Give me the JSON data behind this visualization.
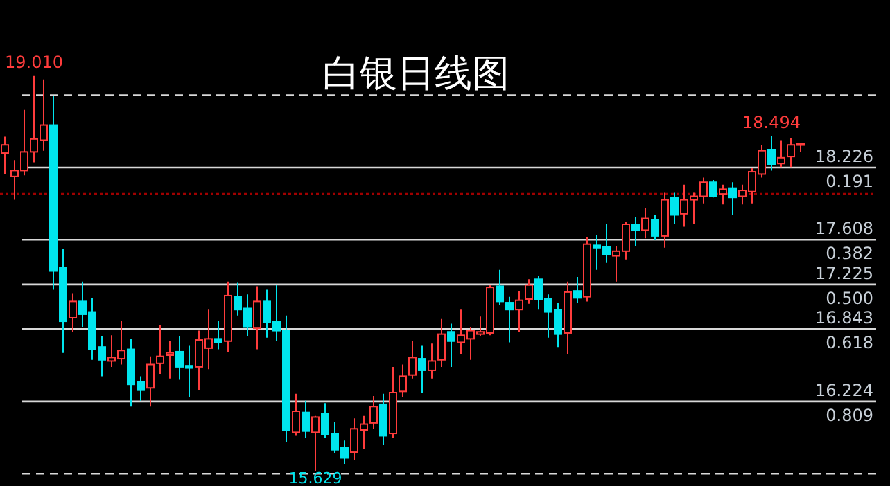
{
  "chart_data": {
    "type": "candlestick",
    "title": "白银日线图",
    "categories": [
      null,
      null,
      null,
      null,
      null,
      null,
      null,
      null,
      null,
      null,
      null,
      null,
      null,
      null,
      null,
      null,
      null,
      null,
      null,
      null,
      null,
      null,
      null,
      null,
      null,
      null,
      null,
      null,
      null,
      null,
      null,
      null,
      null,
      null,
      null,
      null,
      null,
      null,
      null,
      null,
      null,
      null,
      null,
      null,
      null,
      null,
      null,
      null,
      null,
      null,
      null,
      null,
      null,
      null,
      null,
      null,
      null,
      null,
      null,
      null,
      null,
      null,
      null,
      null,
      null,
      null,
      null,
      null,
      null,
      null,
      null,
      null,
      null,
      null,
      null,
      null,
      null,
      null,
      null,
      null,
      null,
      null,
      null
    ],
    "ohlc": [
      [
        18.35,
        18.49,
        18.17,
        18.42
      ],
      [
        18.15,
        18.29,
        17.95,
        18.2
      ],
      [
        18.2,
        18.72,
        18.16,
        18.36
      ],
      [
        18.36,
        19.01,
        18.27,
        18.47
      ],
      [
        18.46,
        18.98,
        18.37,
        18.59
      ],
      [
        18.59,
        18.84,
        17.18,
        17.34
      ],
      [
        17.37,
        17.53,
        16.64,
        16.91
      ],
      [
        16.94,
        17.15,
        16.82,
        17.08
      ],
      [
        17.08,
        17.25,
        16.86,
        16.97
      ],
      [
        16.99,
        17.11,
        16.58,
        16.67
      ],
      [
        16.69,
        16.78,
        16.44,
        16.58
      ],
      [
        16.57,
        16.79,
        16.52,
        16.6
      ],
      [
        16.59,
        16.91,
        16.54,
        16.66
      ],
      [
        16.67,
        16.76,
        16.18,
        16.37
      ],
      [
        16.39,
        16.44,
        16.23,
        16.32
      ],
      [
        16.34,
        16.61,
        16.18,
        16.54
      ],
      [
        16.55,
        16.88,
        16.46,
        16.61
      ],
      [
        16.62,
        16.74,
        16.42,
        16.64
      ],
      [
        16.65,
        16.78,
        16.41,
        16.52
      ],
      [
        16.53,
        16.7,
        16.26,
        16.51
      ],
      [
        16.52,
        16.83,
        16.32,
        16.75
      ],
      [
        16.68,
        17.01,
        16.5,
        16.76
      ],
      [
        16.76,
        16.91,
        16.67,
        16.73
      ],
      [
        16.74,
        17.25,
        16.65,
        17.13
      ],
      [
        17.12,
        17.24,
        16.96,
        17.01
      ],
      [
        17.02,
        17.14,
        16.78,
        16.86
      ],
      [
        16.85,
        17.21,
        16.67,
        17.08
      ],
      [
        17.08,
        17.18,
        16.77,
        16.9
      ],
      [
        16.91,
        17.22,
        16.74,
        16.83
      ],
      [
        16.83,
        16.96,
        15.88,
        15.98
      ],
      [
        15.96,
        16.29,
        15.93,
        16.14
      ],
      [
        16.13,
        16.23,
        15.91,
        15.97
      ],
      [
        15.96,
        16.1,
        15.629,
        16.09
      ],
      [
        16.12,
        16.21,
        15.91,
        15.94
      ],
      [
        15.95,
        16.05,
        15.78,
        15.81
      ],
      [
        15.83,
        15.89,
        15.69,
        15.74
      ],
      [
        15.79,
        16.08,
        15.72,
        15.99
      ],
      [
        15.98,
        16.1,
        15.82,
        16.03
      ],
      [
        16.04,
        16.27,
        15.99,
        16.18
      ],
      [
        16.2,
        16.29,
        15.85,
        15.93
      ],
      [
        15.95,
        16.52,
        15.91,
        16.3
      ],
      [
        16.31,
        16.54,
        16.26,
        16.44
      ],
      [
        16.45,
        16.74,
        16.42,
        16.6
      ],
      [
        16.59,
        16.7,
        16.3,
        16.49
      ],
      [
        16.49,
        16.72,
        16.42,
        16.57
      ],
      [
        16.58,
        16.93,
        16.52,
        16.8
      ],
      [
        16.82,
        16.89,
        16.52,
        16.74
      ],
      [
        16.73,
        17.01,
        16.63,
        16.79
      ],
      [
        16.76,
        16.86,
        16.58,
        16.83
      ],
      [
        16.8,
        16.95,
        16.78,
        16.82
      ],
      [
        16.81,
        17.22,
        16.79,
        17.2
      ],
      [
        17.21,
        17.35,
        17.05,
        17.08
      ],
      [
        17.07,
        17.12,
        16.73,
        17.01
      ],
      [
        17.01,
        17.17,
        16.82,
        17.09
      ],
      [
        17.1,
        17.27,
        17.06,
        17.22
      ],
      [
        17.27,
        17.3,
        17.01,
        17.1
      ],
      [
        17.1,
        17.14,
        16.77,
        16.99
      ],
      [
        17.01,
        17.07,
        16.69,
        16.8
      ],
      [
        16.81,
        17.25,
        16.63,
        17.16
      ],
      [
        17.17,
        17.29,
        17.07,
        17.11
      ],
      [
        17.12,
        17.63,
        17.08,
        17.57
      ],
      [
        17.56,
        17.65,
        17.35,
        17.54
      ],
      [
        17.55,
        17.74,
        17.41,
        17.48
      ],
      [
        17.47,
        17.55,
        17.25,
        17.51
      ],
      [
        17.51,
        17.76,
        17.44,
        17.74
      ],
      [
        17.74,
        17.8,
        17.55,
        17.69
      ],
      [
        17.69,
        17.88,
        17.62,
        17.79
      ],
      [
        17.78,
        17.82,
        17.61,
        17.64
      ],
      [
        17.64,
        18.01,
        17.54,
        17.95
      ],
      [
        17.97,
        18.01,
        17.74,
        17.82
      ],
      [
        17.83,
        18.08,
        17.72,
        17.95
      ],
      [
        17.95,
        18.01,
        17.74,
        17.98
      ],
      [
        17.98,
        18.14,
        17.92,
        18.1
      ],
      [
        18.1,
        18.12,
        17.97,
        17.98
      ],
      [
        18.0,
        18.08,
        17.91,
        18.04
      ],
      [
        18.05,
        18.1,
        17.82,
        17.97
      ],
      [
        17.98,
        18.08,
        17.91,
        18.03
      ],
      [
        18.02,
        18.22,
        17.92,
        18.19
      ],
      [
        18.17,
        18.42,
        18.14,
        18.37
      ],
      [
        18.38,
        18.494,
        18.2,
        18.25
      ],
      [
        18.26,
        18.46,
        18.23,
        18.31
      ],
      [
        18.32,
        18.48,
        18.23,
        18.42
      ],
      [
        18.42,
        18.44,
        18.36,
        18.43
      ]
    ],
    "ylim": [
      15.5,
      19.66
    ],
    "ref_lines": [
      {
        "axis": "y",
        "value": 18.845,
        "line_style": "dashed"
      },
      {
        "axis": "y",
        "value": 18.226,
        "label": "18.226"
      },
      {
        "axis": "y",
        "value": 18.0,
        "line_style": "dotted",
        "color": "#a00000"
      },
      {
        "axis": "y",
        "value": 17.608,
        "label": "17.608"
      },
      {
        "axis": "y",
        "value": 17.225,
        "label": "17.225"
      },
      {
        "axis": "y",
        "value": 16.843,
        "label": "16.843"
      },
      {
        "axis": "y",
        "value": 16.224,
        "label": "16.224"
      },
      {
        "axis": "y",
        "value": 15.605,
        "line_style": "dashed"
      }
    ],
    "annotations": [
      {
        "text": "19.010",
        "y": 19.01
      },
      {
        "text": "18.494",
        "y": 18.494
      },
      {
        "text": "15.629",
        "y": 15.629
      },
      {
        "text": "0.191",
        "y": 18.226
      },
      {
        "text": "0.382",
        "y": 17.608
      },
      {
        "text": "0.500",
        "y": 17.225
      },
      {
        "text": "0.618",
        "y": 16.843
      },
      {
        "text": "0.809",
        "y": 16.224
      }
    ]
  }
}
